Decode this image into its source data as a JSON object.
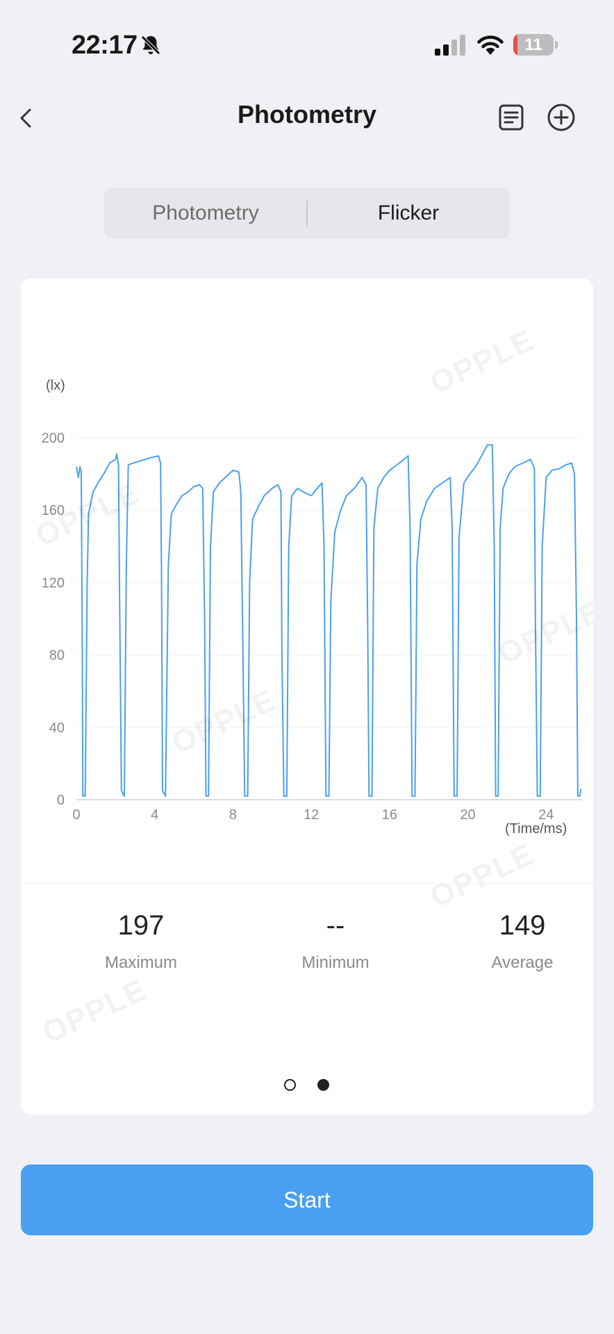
{
  "status_bar": {
    "time": "22:17",
    "battery_level": "11",
    "icons": [
      "bell-slash-icon",
      "signal-icon",
      "wifi-icon",
      "battery-icon"
    ]
  },
  "nav": {
    "title": "Photometry",
    "icons": [
      "chevron-left-icon",
      "document-list-icon",
      "plus-circle-icon"
    ]
  },
  "tabs": [
    {
      "label": "Photometry",
      "selected": false
    },
    {
      "label": "Flicker",
      "selected": true
    }
  ],
  "watermark_text": "OPPLE",
  "chart_data": {
    "type": "line",
    "y_unit_label": "(lx)",
    "x_axis_label": "(Time/ms)",
    "x_ticks": [
      0,
      4,
      8,
      12,
      16,
      20,
      24
    ],
    "y_ticks": [
      0,
      40,
      80,
      120,
      160,
      200
    ],
    "xlim": [
      0,
      25.8
    ],
    "ylim": [
      0,
      200
    ],
    "color": "#4a9ff2",
    "grid": true,
    "series": [
      {
        "values": [
          [
            0,
            184
          ],
          [
            0.1,
            178
          ],
          [
            0.18,
            184
          ],
          [
            0.25,
            181
          ],
          [
            0.3,
            80
          ],
          [
            0.33,
            2
          ],
          [
            0.45,
            2
          ],
          [
            0.55,
            120
          ],
          [
            0.62,
            158
          ],
          [
            0.85,
            170
          ],
          [
            1.1,
            175
          ],
          [
            1.4,
            180
          ],
          [
            1.7,
            186
          ],
          [
            2.0,
            188
          ],
          [
            2.05,
            191
          ],
          [
            2.15,
            185
          ],
          [
            2.2,
            120
          ],
          [
            2.3,
            5
          ],
          [
            2.45,
            2
          ],
          [
            2.55,
            130
          ],
          [
            2.65,
            185
          ],
          [
            2.9,
            186
          ],
          [
            3.2,
            187
          ],
          [
            3.5,
            188
          ],
          [
            3.8,
            189
          ],
          [
            4.2,
            190
          ],
          [
            4.3,
            186
          ],
          [
            4.35,
            120
          ],
          [
            4.4,
            5
          ],
          [
            4.55,
            2
          ],
          [
            4.7,
            130
          ],
          [
            4.85,
            158
          ],
          [
            5.1,
            163
          ],
          [
            5.4,
            168
          ],
          [
            5.7,
            170
          ],
          [
            6.0,
            173
          ],
          [
            6.3,
            174
          ],
          [
            6.45,
            172
          ],
          [
            6.55,
            100
          ],
          [
            6.62,
            2
          ],
          [
            6.75,
            2
          ],
          [
            6.85,
            140
          ],
          [
            7.0,
            170
          ],
          [
            7.3,
            175
          ],
          [
            7.6,
            178
          ],
          [
            8.0,
            182
          ],
          [
            8.3,
            181
          ],
          [
            8.4,
            170
          ],
          [
            8.5,
            90
          ],
          [
            8.6,
            2
          ],
          [
            8.75,
            2
          ],
          [
            8.85,
            120
          ],
          [
            9.0,
            155
          ],
          [
            9.3,
            162
          ],
          [
            9.6,
            168
          ],
          [
            10.0,
            172
          ],
          [
            10.3,
            174
          ],
          [
            10.45,
            170
          ],
          [
            10.5,
            80
          ],
          [
            10.6,
            2
          ],
          [
            10.75,
            2
          ],
          [
            10.85,
            140
          ],
          [
            11.0,
            168
          ],
          [
            11.3,
            172
          ],
          [
            11.6,
            170
          ],
          [
            12.0,
            168
          ],
          [
            12.3,
            172
          ],
          [
            12.55,
            175
          ],
          [
            12.65,
            140
          ],
          [
            12.75,
            2
          ],
          [
            12.9,
            2
          ],
          [
            13.0,
            110
          ],
          [
            13.2,
            148
          ],
          [
            13.5,
            160
          ],
          [
            13.8,
            168
          ],
          [
            14.2,
            172
          ],
          [
            14.6,
            178
          ],
          [
            14.8,
            174
          ],
          [
            14.88,
            100
          ],
          [
            14.95,
            2
          ],
          [
            15.1,
            2
          ],
          [
            15.2,
            150
          ],
          [
            15.4,
            172
          ],
          [
            15.7,
            178
          ],
          [
            16.0,
            182
          ],
          [
            16.5,
            186
          ],
          [
            16.95,
            190
          ],
          [
            17.05,
            150
          ],
          [
            17.15,
            2
          ],
          [
            17.3,
            2
          ],
          [
            17.4,
            130
          ],
          [
            17.6,
            155
          ],
          [
            17.9,
            165
          ],
          [
            18.3,
            172
          ],
          [
            18.7,
            175
          ],
          [
            19.1,
            178
          ],
          [
            19.2,
            150
          ],
          [
            19.3,
            2
          ],
          [
            19.45,
            2
          ],
          [
            19.55,
            145
          ],
          [
            19.8,
            175
          ],
          [
            20.1,
            180
          ],
          [
            20.4,
            184
          ],
          [
            20.7,
            190
          ],
          [
            21.0,
            196
          ],
          [
            21.25,
            196
          ],
          [
            21.35,
            140
          ],
          [
            21.42,
            2
          ],
          [
            21.55,
            2
          ],
          [
            21.65,
            150
          ],
          [
            21.8,
            172
          ],
          [
            22.1,
            180
          ],
          [
            22.4,
            184
          ],
          [
            22.8,
            186
          ],
          [
            23.2,
            188
          ],
          [
            23.4,
            183
          ],
          [
            23.45,
            100
          ],
          [
            23.55,
            2
          ],
          [
            23.7,
            2
          ],
          [
            23.8,
            140
          ],
          [
            24.0,
            178
          ],
          [
            24.3,
            182
          ],
          [
            24.7,
            183
          ],
          [
            25.0,
            185
          ],
          [
            25.3,
            186
          ],
          [
            25.45,
            180
          ],
          [
            25.55,
            100
          ],
          [
            25.62,
            2
          ],
          [
            25.72,
            2
          ],
          [
            25.78,
            6
          ]
        ]
      }
    ]
  },
  "stats": {
    "maximum": {
      "value": "197",
      "label": "Maximum"
    },
    "minimum": {
      "value": "--",
      "label": "Minimum"
    },
    "average": {
      "value": "149",
      "label": "Average"
    }
  },
  "pagination": {
    "pages": 2,
    "current": 2
  },
  "start_button": {
    "label": "Start"
  }
}
